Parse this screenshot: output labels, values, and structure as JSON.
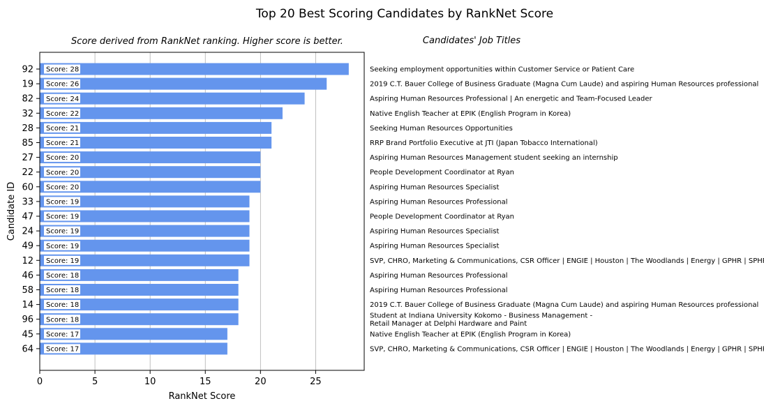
{
  "chart_data": {
    "type": "bar",
    "orientation": "horizontal",
    "title": "Top 20 Best Scoring Candidates by RankNet Score",
    "subtitle": "Score derived from RankNet ranking. Higher score is better.",
    "side_title": "Candidates' Job Titles",
    "xlabel": "RankNet Score",
    "ylabel": "Candidate ID",
    "xlim": [
      0,
      29.4
    ],
    "xticks": [
      0,
      5,
      10,
      15,
      20,
      25
    ],
    "grid": "x",
    "bar_color": "#6495ed",
    "label_prefix": "Score: ",
    "categories": [
      "92",
      "19",
      "82",
      "32",
      "28",
      "85",
      "27",
      "22",
      "60",
      "33",
      "47",
      "24",
      "49",
      "12",
      "46",
      "58",
      "14",
      "96",
      "45",
      "64"
    ],
    "values": [
      28,
      26,
      24,
      22,
      21,
      21,
      20,
      20,
      20,
      19,
      19,
      19,
      19,
      19,
      18,
      18,
      18,
      18,
      17,
      17
    ],
    "job_titles": [
      [
        "Seeking employment opportunities within Customer Service or Patient Care"
      ],
      [
        "2019 C.T. Bauer College of Business Graduate (Magna Cum Laude) and aspiring Human Resources professional"
      ],
      [
        "Aspiring Human Resources Professional | An energetic and Team-Focused Leader"
      ],
      [
        "Native English Teacher at EPIK (English Program in Korea)"
      ],
      [
        "Seeking Human Resources Opportunities"
      ],
      [
        "RRP Brand Portfolio Executive at JTI (Japan Tobacco International)"
      ],
      [
        "Aspiring Human Resources Management student seeking an internship"
      ],
      [
        "People Development Coordinator at Ryan"
      ],
      [
        "Aspiring Human Resources Specialist"
      ],
      [
        "Aspiring Human Resources Professional"
      ],
      [
        "People Development Coordinator at Ryan"
      ],
      [
        "Aspiring Human Resources Specialist"
      ],
      [
        "Aspiring Human Resources Specialist"
      ],
      [
        "SVP, CHRO, Marketing & Communications, CSR Officer | ENGIE | Houston | The Woodlands | Energy | GPHR | SPHR"
      ],
      [
        "Aspiring Human Resources Professional"
      ],
      [
        "Aspiring Human Resources Professional"
      ],
      [
        "2019 C.T. Bauer College of Business Graduate (Magna Cum Laude) and aspiring Human Resources professional"
      ],
      [
        "Student at Indiana University Kokomo - Business Management -",
        "Retail Manager at Delphi Hardware and Paint"
      ],
      [
        "Native English Teacher at EPIK (English Program in Korea)"
      ],
      [
        "SVP, CHRO, Marketing & Communications, CSR Officer | ENGIE | Houston | The Woodlands | Energy | GPHR | SPHR"
      ]
    ]
  }
}
